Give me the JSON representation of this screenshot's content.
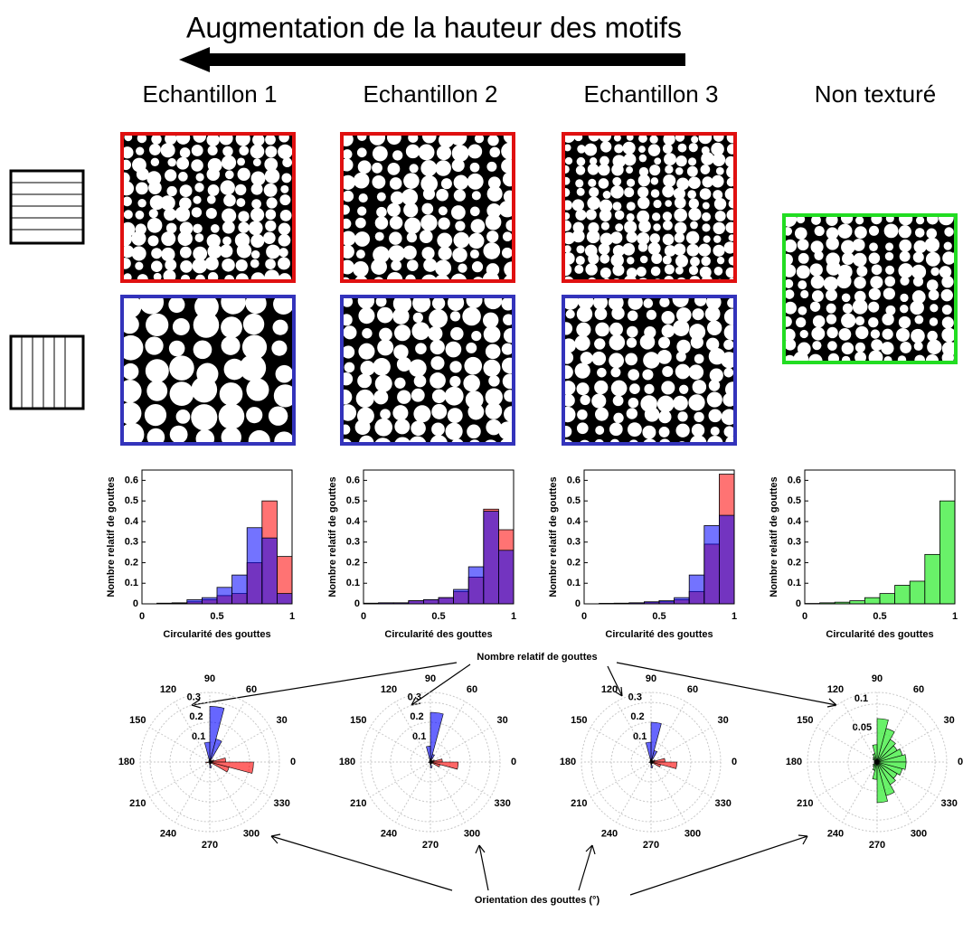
{
  "title": "Augmentation de la hauteur des motifs",
  "columns": [
    "Echantillon 1",
    "Echantillon 2",
    "Echantillon 3",
    "Non texturé"
  ],
  "annotations": {
    "radius": "Nombre relatif de gouttes",
    "angle": "Orientation des gouttes (°)"
  },
  "chart_data": [
    {
      "type": "histogram",
      "xlabel": "Circularité des gouttes",
      "ylabel": "Nombre relatif de gouttes",
      "bins": [
        0,
        0.1,
        0.2,
        0.3,
        0.4,
        0.5,
        0.6,
        0.7,
        0.8,
        0.9,
        1
      ],
      "series": [
        {
          "color": "#ff0000",
          "values": [
            0,
            0.003,
            0.005,
            0.01,
            0.02,
            0.04,
            0.05,
            0.2,
            0.5,
            0.23
          ]
        },
        {
          "color": "#0000ff",
          "values": [
            0,
            0.003,
            0.003,
            0.02,
            0.03,
            0.08,
            0.14,
            0.37,
            0.32,
            0.05
          ]
        }
      ],
      "xlim": [
        0,
        1
      ],
      "xticks": [
        0,
        0.5,
        1
      ],
      "ylim": [
        0,
        0.65
      ],
      "yticks": [
        0,
        0.1,
        0.2,
        0.3,
        0.4,
        0.5,
        0.6
      ]
    },
    {
      "type": "histogram",
      "xlabel": "Circularité des gouttes",
      "ylabel": "Nombre relatif de gouttes",
      "bins": [
        0,
        0.1,
        0.2,
        0.3,
        0.4,
        0.5,
        0.6,
        0.7,
        0.8,
        0.9,
        1
      ],
      "series": [
        {
          "color": "#ff0000",
          "values": [
            0.003,
            0.005,
            0.005,
            0.015,
            0.02,
            0.03,
            0.06,
            0.13,
            0.46,
            0.36
          ]
        },
        {
          "color": "#0000ff",
          "values": [
            0.003,
            0.005,
            0.005,
            0.015,
            0.02,
            0.03,
            0.07,
            0.18,
            0.45,
            0.26
          ]
        }
      ],
      "xlim": [
        0,
        1
      ],
      "xticks": [
        0,
        0.5,
        1
      ],
      "ylim": [
        0,
        0.65
      ],
      "yticks": [
        0,
        0.1,
        0.2,
        0.3,
        0.4,
        0.5,
        0.6
      ]
    },
    {
      "type": "histogram",
      "xlabel": "Circularité des gouttes",
      "ylabel": "Nombre relatif de gouttes",
      "bins": [
        0,
        0.1,
        0.2,
        0.3,
        0.4,
        0.5,
        0.6,
        0.7,
        0.8,
        0.9,
        1
      ],
      "series": [
        {
          "color": "#ff0000",
          "values": [
            0,
            0.002,
            0.003,
            0.005,
            0.008,
            0.01,
            0.02,
            0.06,
            0.29,
            0.63
          ]
        },
        {
          "color": "#0000ff",
          "values": [
            0,
            0.002,
            0.003,
            0.005,
            0.01,
            0.015,
            0.03,
            0.14,
            0.38,
            0.43
          ]
        }
      ],
      "xlim": [
        0,
        1
      ],
      "xticks": [
        0,
        0.5,
        1
      ],
      "ylim": [
        0,
        0.65
      ],
      "yticks": [
        0,
        0.1,
        0.2,
        0.3,
        0.4,
        0.5,
        0.6
      ]
    },
    {
      "type": "histogram",
      "xlabel": "Circularité des gouttes",
      "ylabel": "Nombre relatif de gouttes",
      "bins": [
        0,
        0.1,
        0.2,
        0.3,
        0.4,
        0.5,
        0.6,
        0.7,
        0.8,
        0.9,
        1
      ],
      "series": [
        {
          "color": "#44ee44",
          "values": [
            0.002,
            0.005,
            0.008,
            0.015,
            0.03,
            0.05,
            0.09,
            0.11,
            0.24,
            0.5
          ]
        }
      ],
      "xlim": [
        0,
        1
      ],
      "xticks": [
        0,
        0.5,
        1
      ],
      "ylim": [
        0,
        0.65
      ],
      "yticks": [
        0,
        0.1,
        0.2,
        0.3,
        0.4,
        0.5,
        0.6
      ]
    },
    {
      "type": "polar",
      "thetabins": [
        0,
        15,
        30,
        45,
        60,
        75,
        90,
        105,
        120,
        135,
        150,
        165,
        180,
        195,
        210,
        225,
        240,
        255,
        270,
        285,
        300,
        315,
        330,
        345,
        360
      ],
      "series": [
        {
          "color": "#ff0000",
          "values": [
            0.08,
            0.02,
            0.005,
            0,
            0,
            0,
            0,
            0,
            0,
            0,
            0,
            0.005,
            0.02,
            0.005,
            0,
            0,
            0,
            0,
            0,
            0,
            0,
            0.01,
            0.1,
            0.22
          ]
        },
        {
          "color": "#0000ff",
          "values": [
            0.01,
            0.005,
            0.005,
            0.01,
            0.12,
            0.28,
            0.1,
            0.01,
            0.005,
            0,
            0,
            0,
            0.005,
            0,
            0,
            0,
            0,
            0.01,
            0.03,
            0.01,
            0,
            0,
            0,
            0.005
          ]
        }
      ],
      "rlim": [
        0,
        0.35
      ],
      "rticks": [
        0.1,
        0.2,
        0.3
      ],
      "thetaticks": [
        0,
        30,
        60,
        90,
        120,
        150,
        180,
        210,
        240,
        270,
        300,
        330
      ]
    },
    {
      "type": "polar",
      "thetabins": [
        0,
        15,
        30,
        45,
        60,
        75,
        90,
        105,
        120,
        135,
        150,
        165,
        180,
        195,
        210,
        225,
        240,
        255,
        270,
        285,
        300,
        315,
        330,
        345,
        360
      ],
      "series": [
        {
          "color": "#ff0000",
          "values": [
            0.06,
            0.02,
            0.005,
            0,
            0,
            0,
            0,
            0,
            0,
            0,
            0,
            0.005,
            0.01,
            0.005,
            0,
            0,
            0,
            0,
            0,
            0,
            0,
            0.01,
            0.05,
            0.14
          ]
        },
        {
          "color": "#0000ff",
          "values": [
            0.01,
            0.005,
            0.005,
            0.01,
            0.04,
            0.25,
            0.08,
            0.01,
            0.005,
            0,
            0,
            0,
            0.005,
            0,
            0,
            0,
            0,
            0.01,
            0.03,
            0.01,
            0,
            0,
            0,
            0.005
          ]
        }
      ],
      "rlim": [
        0,
        0.35
      ],
      "rticks": [
        0.1,
        0.2,
        0.3
      ],
      "thetaticks": [
        0,
        30,
        60,
        90,
        120,
        150,
        180,
        210,
        240,
        270,
        300,
        330
      ]
    },
    {
      "type": "polar",
      "thetabins": [
        0,
        15,
        30,
        45,
        60,
        75,
        90,
        105,
        120,
        135,
        150,
        165,
        180,
        195,
        210,
        225,
        240,
        255,
        270,
        285,
        300,
        315,
        330,
        345,
        360
      ],
      "series": [
        {
          "color": "#ff0000",
          "values": [
            0.07,
            0.02,
            0.005,
            0,
            0,
            0,
            0,
            0,
            0,
            0,
            0,
            0.005,
            0.01,
            0.005,
            0,
            0,
            0,
            0,
            0,
            0,
            0,
            0.01,
            0.05,
            0.13
          ]
        },
        {
          "color": "#0000ff",
          "values": [
            0.01,
            0.005,
            0.005,
            0.01,
            0.06,
            0.2,
            0.1,
            0.01,
            0.005,
            0,
            0,
            0,
            0.005,
            0,
            0,
            0,
            0,
            0.01,
            0.03,
            0.01,
            0,
            0,
            0,
            0.005
          ]
        }
      ],
      "rlim": [
        0,
        0.35
      ],
      "rticks": [
        0.1,
        0.2,
        0.3
      ],
      "thetaticks": [
        0,
        30,
        60,
        90,
        120,
        150,
        180,
        210,
        240,
        270,
        300,
        330
      ]
    },
    {
      "type": "polar",
      "thetabins": [
        0,
        15,
        30,
        45,
        60,
        75,
        90,
        105,
        120,
        135,
        150,
        165,
        180,
        195,
        210,
        225,
        240,
        255,
        270,
        285,
        300,
        315,
        330,
        345,
        360
      ],
      "series": [
        {
          "color": "#44ee44",
          "values": [
            0.05,
            0.045,
            0.04,
            0.045,
            0.06,
            0.075,
            0.03,
            0.015,
            0.01,
            0.008,
            0.005,
            0.005,
            0.005,
            0.005,
            0.008,
            0.01,
            0.015,
            0.03,
            0.07,
            0.06,
            0.045,
            0.04,
            0.045,
            0.05
          ]
        }
      ],
      "rlim": [
        0,
        0.12
      ],
      "rticks": [
        0.05,
        0.1
      ],
      "thetaticks": [
        0,
        30,
        60,
        90,
        120,
        150,
        180,
        210,
        240,
        270,
        300,
        330
      ]
    }
  ]
}
